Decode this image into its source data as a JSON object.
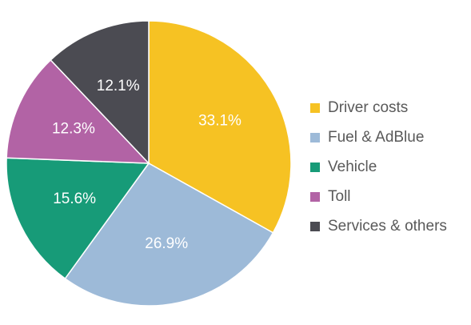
{
  "chart_data": {
    "type": "pie",
    "title": "",
    "slices": [
      {
        "name": "Driver costs",
        "value": 33.1,
        "label": "33.1%",
        "color": "#F6C223"
      },
      {
        "name": "Fuel & AdBlue",
        "value": 26.9,
        "label": "26.9%",
        "color": "#9DBAD8"
      },
      {
        "name": "Vehicle",
        "value": 15.6,
        "label": "15.6%",
        "color": "#179B78"
      },
      {
        "name": "Toll",
        "value": 12.3,
        "label": "12.3%",
        "color": "#B263A5"
      },
      {
        "name": "Services & others",
        "value": 12.1,
        "label": "12.1%",
        "color": "#4B4B52"
      }
    ],
    "start": "top",
    "direction": "clockwise",
    "legend": "right"
  }
}
